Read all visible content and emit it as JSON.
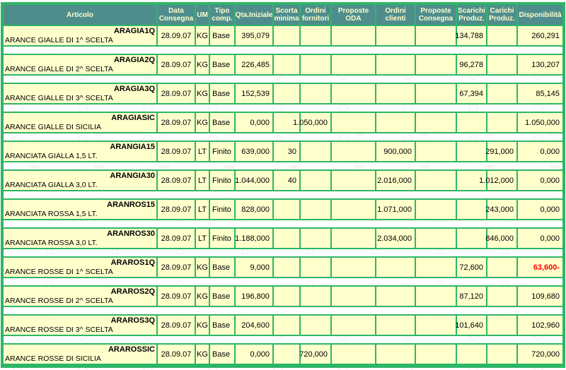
{
  "colors": {
    "border_green": "#2eb667",
    "header_bg": "#4f8d8d",
    "header_text": "#ffffcc",
    "cell_bg": "#ffffcc",
    "text": "#000000",
    "negative_value": "#ff0000"
  },
  "table": {
    "columns": [
      {
        "key": "articolo",
        "label": "Articolo"
      },
      {
        "key": "data_consegna",
        "label": "Data Consegna"
      },
      {
        "key": "um",
        "label": "UM"
      },
      {
        "key": "tipo_comp",
        "label": "Tipo comp."
      },
      {
        "key": "qta_iniziale",
        "label": "Qta.Iniziale"
      },
      {
        "key": "scorta_minima",
        "label": "Scorta minima"
      },
      {
        "key": "ordini_fornitori",
        "label": "Ordini fornitori"
      },
      {
        "key": "proposte_oda",
        "label": "Proposte ODA"
      },
      {
        "key": "ordini_clienti",
        "label": "Ordini clienti"
      },
      {
        "key": "proposte_consegna",
        "label": "Proposte Consegna"
      },
      {
        "key": "scarichi_produz",
        "label": "Scarichi Produz."
      },
      {
        "key": "carichi_produz",
        "label": "Carichi Produz."
      },
      {
        "key": "disponibilita",
        "label": "Disponibilità"
      }
    ],
    "rows": [
      {
        "code": "ARAGIA1Q",
        "desc": "ARANCE GIALLE DI 1^ SCELTA",
        "data_consegna": "28.09.07",
        "um": "KG",
        "tipo_comp": "Base",
        "qta_iniziale": "395,079",
        "scorta_minima": "",
        "ordini_fornitori": "",
        "proposte_oda": "",
        "ordini_clienti": "",
        "proposte_consegna": "",
        "scarichi_produz": "134,788",
        "carichi_produz": "",
        "disponibilita": "260,291",
        "negative": false
      },
      {
        "code": "ARAGIA2Q",
        "desc": "ARANCE GIALLE DI 2^ SCELTA",
        "data_consegna": "28.09.07",
        "um": "KG",
        "tipo_comp": "Base",
        "qta_iniziale": "226,485",
        "scorta_minima": "",
        "ordini_fornitori": "",
        "proposte_oda": "",
        "ordini_clienti": "",
        "proposte_consegna": "",
        "scarichi_produz": "96,278",
        "carichi_produz": "",
        "disponibilita": "130,207",
        "negative": false
      },
      {
        "code": "ARAGIA3Q",
        "desc": "ARANCE GIALLE DI 3^ SCELTA",
        "data_consegna": "28.09.07",
        "um": "KG",
        "tipo_comp": "Base",
        "qta_iniziale": "152,539",
        "scorta_minima": "",
        "ordini_fornitori": "",
        "proposte_oda": "",
        "ordini_clienti": "",
        "proposte_consegna": "",
        "scarichi_produz": "67,394",
        "carichi_produz": "",
        "disponibilita": "85,145",
        "negative": false
      },
      {
        "code": "ARAGIASIC",
        "desc": "ARANCE GIALLE DI SICILIA",
        "data_consegna": "28.09.07",
        "um": "KG",
        "tipo_comp": "Base",
        "qta_iniziale": "0,000",
        "scorta_minima": "",
        "ordini_fornitori": "1.050,000",
        "proposte_oda": "",
        "ordini_clienti": "",
        "proposte_consegna": "",
        "scarichi_produz": "",
        "carichi_produz": "",
        "disponibilita": "1.050,000",
        "negative": false
      },
      {
        "code": "ARANGIA15",
        "desc": "ARANCIATA GIALLA 1,5 LT.",
        "data_consegna": "28.09.07",
        "um": "LT",
        "tipo_comp": "Finito",
        "qta_iniziale": "639,000",
        "scorta_minima": "30",
        "ordini_fornitori": "",
        "proposte_oda": "",
        "ordini_clienti": "900,000",
        "proposte_consegna": "",
        "scarichi_produz": "",
        "carichi_produz": "291,000",
        "disponibilita": "0,000",
        "negative": false
      },
      {
        "code": "ARANGIA30",
        "desc": "ARANCIATA GIALLA 3,0 LT.",
        "data_consegna": "28.09.07",
        "um": "LT",
        "tipo_comp": "Finito",
        "qta_iniziale": "1.044,000",
        "scorta_minima": "40",
        "ordini_fornitori": "",
        "proposte_oda": "",
        "ordini_clienti": "2.016,000",
        "proposte_consegna": "",
        "scarichi_produz": "",
        "carichi_produz": "1.012,000",
        "disponibilita": "0,000",
        "negative": false
      },
      {
        "code": "ARANROS15",
        "desc": "ARANCIATA ROSSA 1,5 LT.",
        "data_consegna": "28.09.07",
        "um": "LT",
        "tipo_comp": "Finito",
        "qta_iniziale": "828,000",
        "scorta_minima": "",
        "ordini_fornitori": "",
        "proposte_oda": "",
        "ordini_clienti": "1.071,000",
        "proposte_consegna": "",
        "scarichi_produz": "",
        "carichi_produz": "243,000",
        "disponibilita": "0,000",
        "negative": false
      },
      {
        "code": "ARANROS30",
        "desc": "ARANCIATA ROSSA 3,0 LT.",
        "data_consegna": "28.09.07",
        "um": "LT",
        "tipo_comp": "Finito",
        "qta_iniziale": "1.188,000",
        "scorta_minima": "",
        "ordini_fornitori": "",
        "proposte_oda": "",
        "ordini_clienti": "2.034,000",
        "proposte_consegna": "",
        "scarichi_produz": "",
        "carichi_produz": "846,000",
        "disponibilita": "0,000",
        "negative": false
      },
      {
        "code": "ARAROS1Q",
        "desc": "ARANCE ROSSE DI 1^ SCELTA",
        "data_consegna": "28.09.07",
        "um": "KG",
        "tipo_comp": "Base",
        "qta_iniziale": "9,000",
        "scorta_minima": "",
        "ordini_fornitori": "",
        "proposte_oda": "",
        "ordini_clienti": "",
        "proposte_consegna": "",
        "scarichi_produz": "72,600",
        "carichi_produz": "",
        "disponibilita": "63,600-",
        "negative": true
      },
      {
        "code": "ARAROS2Q",
        "desc": "ARANCE ROSSE DI 2^ SCELTA",
        "data_consegna": "28.09.07",
        "um": "KG",
        "tipo_comp": "Base",
        "qta_iniziale": "196,800",
        "scorta_minima": "",
        "ordini_fornitori": "",
        "proposte_oda": "",
        "ordini_clienti": "",
        "proposte_consegna": "",
        "scarichi_produz": "87,120",
        "carichi_produz": "",
        "disponibilita": "109,680",
        "negative": false
      },
      {
        "code": "ARAROS3Q",
        "desc": "ARANCE ROSSE DI 3^ SCELTA",
        "data_consegna": "28.09.07",
        "um": "KG",
        "tipo_comp": "Base",
        "qta_iniziale": "204,600",
        "scorta_minima": "",
        "ordini_fornitori": "",
        "proposte_oda": "",
        "ordini_clienti": "",
        "proposte_consegna": "",
        "scarichi_produz": "101,640",
        "carichi_produz": "",
        "disponibilita": "102,960",
        "negative": false
      },
      {
        "code": "ARAROSSIC",
        "desc": "ARANCE ROSSE DI SICILIA",
        "data_consegna": "28.09.07",
        "um": "KG",
        "tipo_comp": "Base",
        "qta_iniziale": "0,000",
        "scorta_minima": "",
        "ordini_fornitori": "720,000",
        "proposte_oda": "",
        "ordini_clienti": "",
        "proposte_consegna": "",
        "scarichi_produz": "",
        "carichi_produz": "",
        "disponibilita": "720,000",
        "negative": false
      }
    ]
  }
}
